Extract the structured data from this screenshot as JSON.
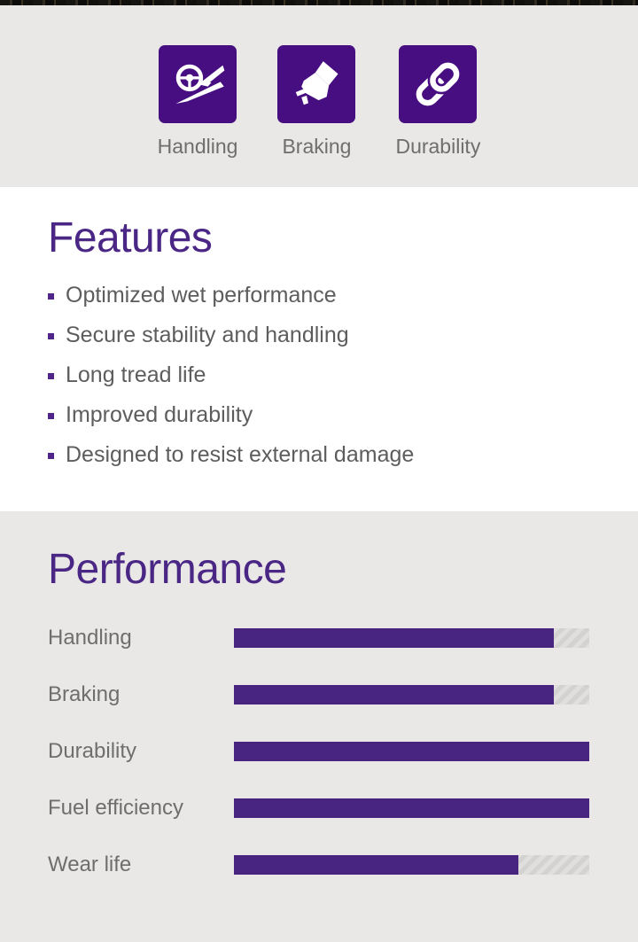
{
  "benefits": {
    "items": [
      {
        "label": "Handling",
        "icon": "steering-wheel-icon"
      },
      {
        "label": "Braking",
        "icon": "brake-pedal-icon"
      },
      {
        "label": "Durability",
        "icon": "chain-link-icon"
      }
    ]
  },
  "features": {
    "title": "Features",
    "items": [
      "Optimized wet performance",
      "Secure stability and handling",
      "Long tread life",
      "Improved durability",
      "Designed to resist external damage"
    ]
  },
  "performance": {
    "title": "Performance",
    "bars": [
      {
        "label": "Handling",
        "value": 90
      },
      {
        "label": "Braking",
        "value": 90
      },
      {
        "label": "Durability",
        "value": 100
      },
      {
        "label": "Fuel efficiency",
        "value": 100
      },
      {
        "label": "Wear life",
        "value": 80
      }
    ]
  },
  "chart_data": {
    "type": "bar",
    "orientation": "horizontal",
    "title": "Performance",
    "categories": [
      "Handling",
      "Braking",
      "Durability",
      "Fuel efficiency",
      "Wear life"
    ],
    "values": [
      90,
      90,
      100,
      100,
      80
    ],
    "xlim": [
      0,
      100
    ],
    "value_format": "percent of full track, estimated (no numeric labels shown)",
    "legend": "none",
    "grid": false,
    "bar_color": "#472580",
    "track_style": "diagonal-hatch-gray"
  },
  "colors": {
    "tile_purple": "#470e81",
    "bar_purple": "#472580",
    "heading_purple": "#4a2685",
    "section_gray": "#e9e8e6",
    "body_text_gray": "#5d5d5d",
    "label_gray": "#6e6e6e"
  }
}
